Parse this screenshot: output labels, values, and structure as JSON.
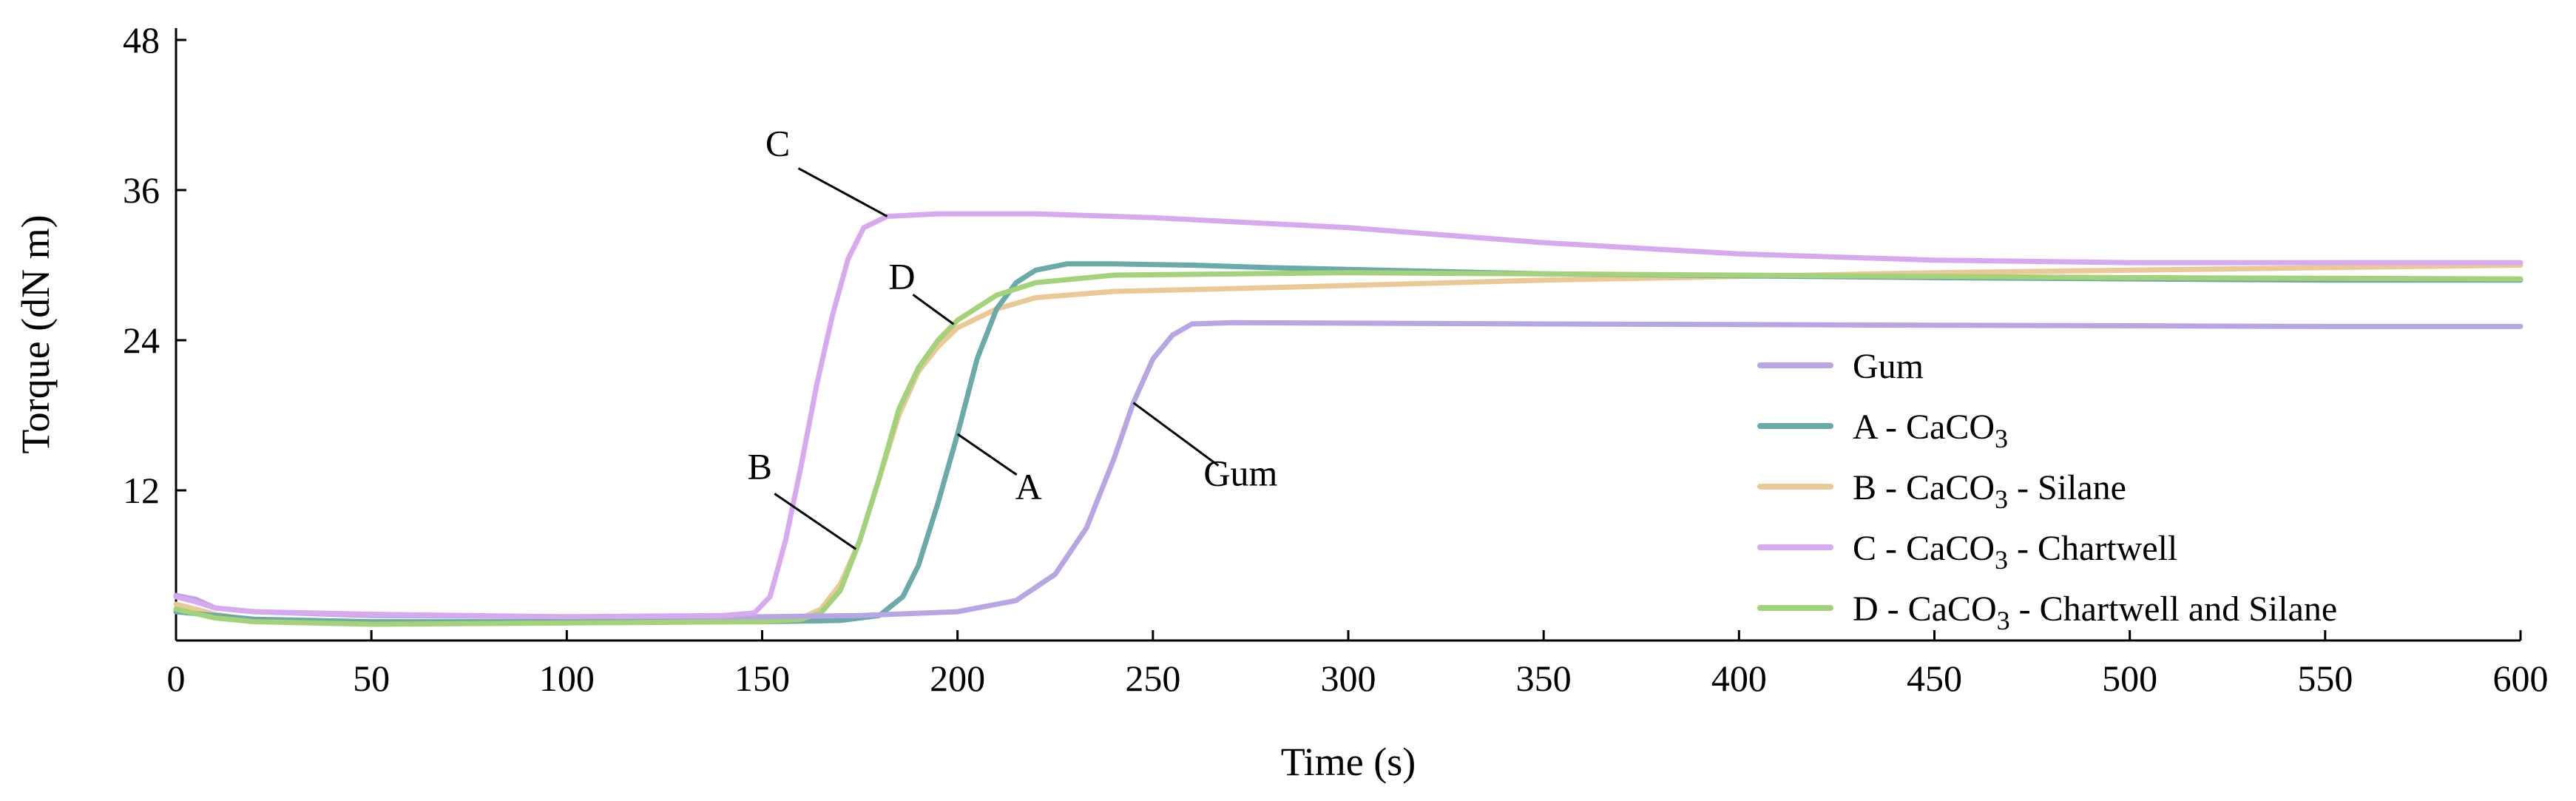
{
  "chart_data": {
    "type": "line",
    "title": "",
    "xlabel": "Time (s)",
    "ylabel": "Torque (dN m)",
    "xlim": [
      0,
      600
    ],
    "ylim": [
      0,
      48
    ],
    "xticks": [
      0,
      50,
      100,
      150,
      200,
      250,
      300,
      350,
      400,
      450,
      500,
      550,
      600
    ],
    "yticks": [
      12,
      24,
      36,
      48
    ],
    "grid": false,
    "legend_position": "right",
    "series": [
      {
        "key": "gum",
        "name": "Gum",
        "color": "#b8a5e3",
        "points": [
          [
            0,
            3.6
          ],
          [
            5,
            3.3
          ],
          [
            10,
            2.6
          ],
          [
            20,
            2.3
          ],
          [
            50,
            2.0
          ],
          [
            100,
            1.9
          ],
          [
            150,
            1.9
          ],
          [
            175,
            2.0
          ],
          [
            200,
            2.3
          ],
          [
            215,
            3.2
          ],
          [
            225,
            5.3
          ],
          [
            233,
            9.0
          ],
          [
            240,
            14.5
          ],
          [
            245,
            19.0
          ],
          [
            250,
            22.5
          ],
          [
            255,
            24.4
          ],
          [
            260,
            25.3
          ],
          [
            270,
            25.4
          ],
          [
            350,
            25.3
          ],
          [
            450,
            25.2
          ],
          [
            550,
            25.1
          ],
          [
            600,
            25.1
          ]
        ]
      },
      {
        "key": "a",
        "name": "A - CaCO3",
        "color": "#6aaaa8",
        "points": [
          [
            0,
            2.3
          ],
          [
            20,
            1.7
          ],
          [
            50,
            1.5
          ],
          [
            100,
            1.5
          ],
          [
            150,
            1.5
          ],
          [
            170,
            1.6
          ],
          [
            180,
            2.0
          ],
          [
            186,
            3.5
          ],
          [
            190,
            6.0
          ],
          [
            195,
            11.0
          ],
          [
            200,
            16.5
          ],
          [
            205,
            22.5
          ],
          [
            210,
            26.5
          ],
          [
            215,
            28.6
          ],
          [
            220,
            29.6
          ],
          [
            228,
            30.1
          ],
          [
            240,
            30.1
          ],
          [
            260,
            30.0
          ],
          [
            280,
            29.8
          ],
          [
            350,
            29.3
          ],
          [
            450,
            29.0
          ],
          [
            550,
            28.8
          ],
          [
            600,
            28.8
          ]
        ]
      },
      {
        "key": "b",
        "name": "B - CaCO3 - Silane",
        "color": "#ebc997",
        "points": [
          [
            0,
            2.9
          ],
          [
            10,
            2.1
          ],
          [
            20,
            1.6
          ],
          [
            50,
            1.4
          ],
          [
            100,
            1.5
          ],
          [
            150,
            1.6
          ],
          [
            160,
            1.8
          ],
          [
            165,
            2.5
          ],
          [
            170,
            4.5
          ],
          [
            175,
            8.0
          ],
          [
            180,
            13.0
          ],
          [
            185,
            18.0
          ],
          [
            190,
            21.5
          ],
          [
            195,
            23.5
          ],
          [
            200,
            25.0
          ],
          [
            210,
            26.5
          ],
          [
            220,
            27.4
          ],
          [
            240,
            27.9
          ],
          [
            280,
            28.2
          ],
          [
            350,
            28.8
          ],
          [
            450,
            29.4
          ],
          [
            550,
            29.8
          ],
          [
            600,
            30.0
          ]
        ]
      },
      {
        "key": "c",
        "name": "C - CaCO3 - Chartwell",
        "color": "#d7aaf0",
        "points": [
          [
            0,
            3.5
          ],
          [
            5,
            3.1
          ],
          [
            10,
            2.6
          ],
          [
            20,
            2.3
          ],
          [
            50,
            2.1
          ],
          [
            100,
            1.9
          ],
          [
            140,
            2.0
          ],
          [
            148,
            2.2
          ],
          [
            152,
            3.5
          ],
          [
            156,
            8.0
          ],
          [
            160,
            14.0
          ],
          [
            164,
            20.5
          ],
          [
            168,
            26.0
          ],
          [
            172,
            30.5
          ],
          [
            176,
            33.0
          ],
          [
            182,
            33.9
          ],
          [
            195,
            34.1
          ],
          [
            220,
            34.1
          ],
          [
            250,
            33.8
          ],
          [
            300,
            33.0
          ],
          [
            350,
            31.8
          ],
          [
            400,
            30.9
          ],
          [
            450,
            30.4
          ],
          [
            500,
            30.2
          ],
          [
            550,
            30.2
          ],
          [
            600,
            30.2
          ]
        ]
      },
      {
        "key": "d",
        "name": "D - CaCO3 - Chartwell and Silane",
        "color": "#a4d27a",
        "points": [
          [
            0,
            2.5
          ],
          [
            10,
            1.8
          ],
          [
            20,
            1.5
          ],
          [
            50,
            1.3
          ],
          [
            100,
            1.4
          ],
          [
            150,
            1.5
          ],
          [
            160,
            1.7
          ],
          [
            165,
            2.2
          ],
          [
            170,
            4.0
          ],
          [
            175,
            8.0
          ],
          [
            180,
            13.0
          ],
          [
            185,
            18.5
          ],
          [
            190,
            21.8
          ],
          [
            195,
            24.0
          ],
          [
            200,
            25.6
          ],
          [
            210,
            27.6
          ],
          [
            220,
            28.6
          ],
          [
            240,
            29.2
          ],
          [
            300,
            29.4
          ],
          [
            400,
            29.2
          ],
          [
            500,
            29.0
          ],
          [
            600,
            28.9
          ]
        ]
      }
    ],
    "annotations": [
      {
        "text": "C",
        "series": "c",
        "anchor_x": 182
      },
      {
        "text": "D",
        "series": "d",
        "anchor_x": 199
      },
      {
        "text": "A",
        "series": "a",
        "anchor_x": 200
      },
      {
        "text": "B",
        "series": "b",
        "anchor_x": 174
      },
      {
        "text": "Gum",
        "series": "gum",
        "anchor_x": 245
      }
    ]
  }
}
